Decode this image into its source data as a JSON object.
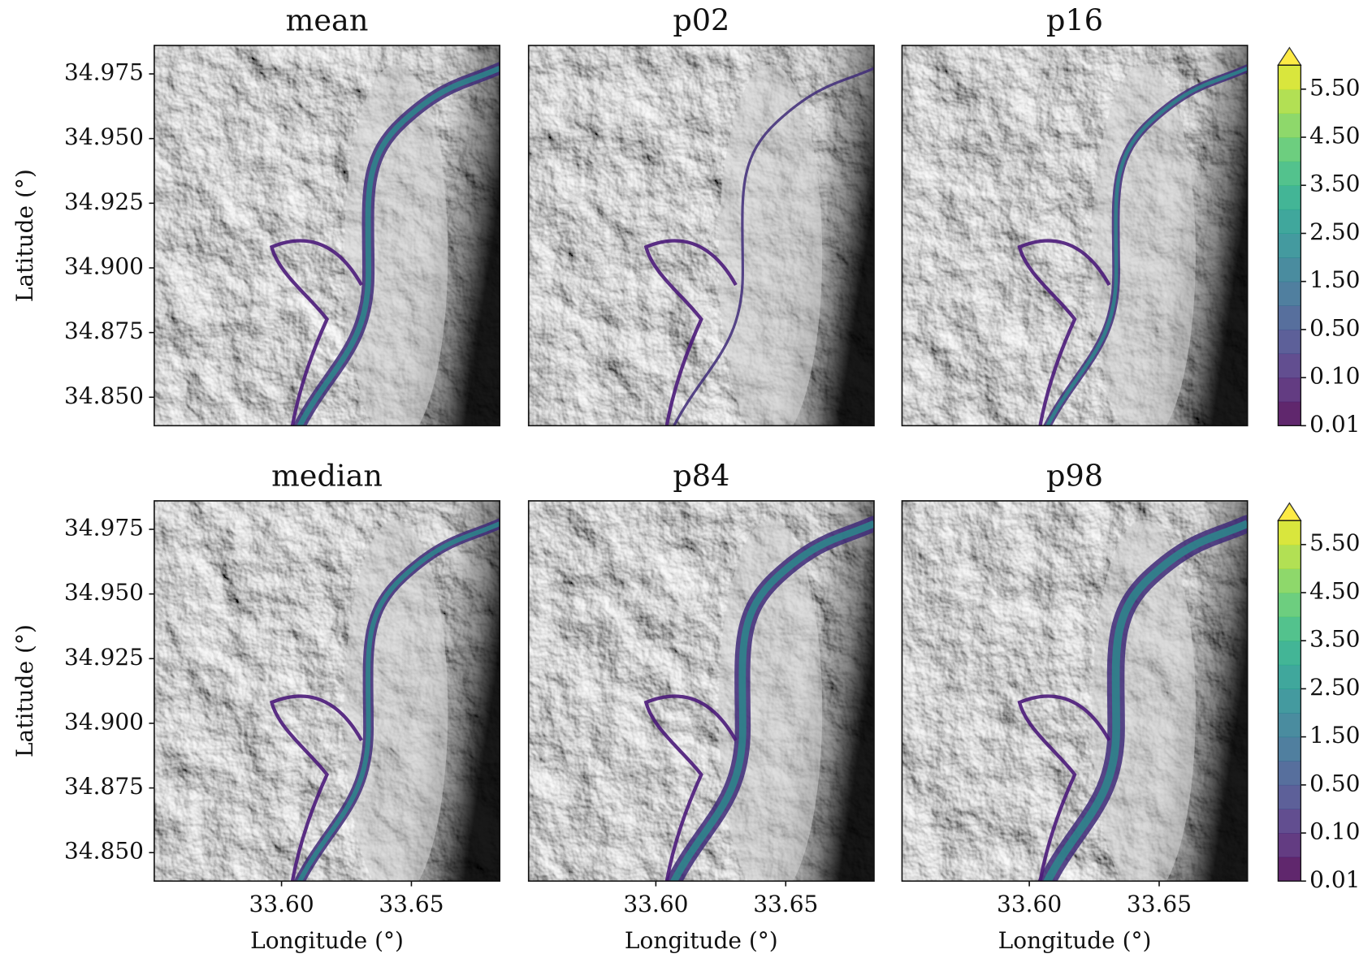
{
  "chart_data": [
    {
      "type": "map",
      "title": "mean",
      "ylabel": "Latitude ($^\\circ$)",
      "ylim": [
        34.839,
        34.986
      ],
      "yticks": [
        34.975,
        {
          "value": 34.95,
          "label": "34.950"
        },
        34.925,
        {
          "value": 34.9,
          "label": "34.900"
        },
        34.875,
        {
          "value": 34.85,
          "label": "34.850"
        }
      ]
    },
    {
      "type": "map",
      "title": "p02"
    },
    {
      "type": "map",
      "title": "p16",
      "colorbar": {
        "ticks": [
          0.01,
          {
            "value": 0.1,
            "label": "0.10"
          },
          {
            "value": 0.5,
            "label": "0.50"
          },
          {
            "value": 1.5,
            "label": "1.50"
          },
          {
            "value": 2.5,
            "label": "2.50"
          },
          {
            "value": 3.5,
            "label": "3.50"
          },
          {
            "value": 4.5,
            "label": "4.50"
          },
          {
            "value": 5.5,
            "label": "5.50"
          }
        ],
        "colors": [
          "#440154",
          "#481a6c",
          "#472f7d",
          "#414487",
          "#39568c",
          "#31688e",
          "#2a788e",
          "#23888e",
          "#1f988b",
          "#22a884",
          "#35b779",
          "#54c568",
          "#7ad151",
          "#a5db36",
          "#d2e21b"
        ],
        "extend_color": "#fde725"
      }
    },
    {
      "type": "map",
      "title": "median",
      "ylabel": "Latitude ($^\\circ$)",
      "xlabel": "Longitude ($^\\circ$)",
      "xlim": [
        33.551,
        33.684
      ],
      "ylim": [
        34.839,
        34.986
      ],
      "xticks": [
        {
          "value": 33.6,
          "label": "33.60"
        },
        33.65
      ],
      "yticks": [
        34.975,
        {
          "value": 34.95,
          "label": "34.950"
        },
        34.925,
        {
          "value": 34.9,
          "label": "34.900"
        },
        34.875,
        {
          "value": 34.85,
          "label": "34.850"
        }
      ]
    },
    {
      "type": "map",
      "title": "p84",
      "xlabel": "Longitude ($^\\circ$)",
      "xlim": [
        33.551,
        33.684
      ],
      "xticks": [
        {
          "value": 33.6,
          "label": "33.60"
        },
        33.65
      ]
    },
    {
      "type": "map",
      "title": "p98",
      "xlabel": "Longitude ($^\\circ$)",
      "xlim": [
        33.551,
        33.684
      ],
      "xticks": [
        {
          "value": 33.6,
          "label": "33.60"
        },
        33.65
      ],
      "colorbar": {
        "ticks": [
          0.01,
          {
            "value": 0.1,
            "label": "0.10"
          },
          {
            "value": 0.5,
            "label": "0.50"
          },
          {
            "value": 1.5,
            "label": "1.50"
          },
          {
            "value": 2.5,
            "label": "2.50"
          },
          {
            "value": 3.5,
            "label": "3.50"
          },
          {
            "value": 4.5,
            "label": "4.50"
          },
          {
            "value": 5.5,
            "label": "5.50"
          }
        ],
        "colors": [
          "#440154",
          "#481a6c",
          "#472f7d",
          "#414487",
          "#39568c",
          "#31688e",
          "#2a788e",
          "#23888e",
          "#1f988b",
          "#22a884",
          "#35b779",
          "#54c568",
          "#7ad151",
          "#a5db36",
          "#d2e21b"
        ],
        "extend_color": "#fde725"
      }
    }
  ]
}
